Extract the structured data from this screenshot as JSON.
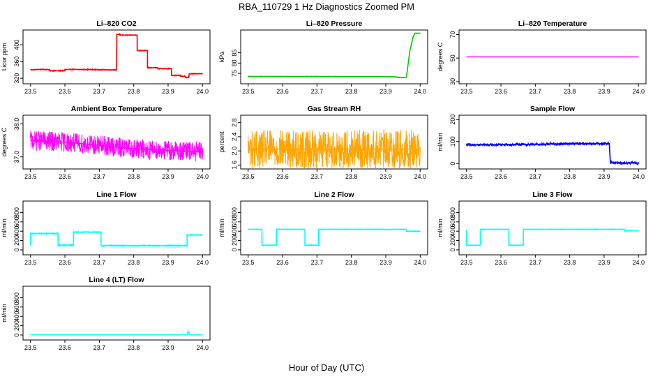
{
  "figure": {
    "title": "RBA_110729  1 Hz Diagnostics Zoomed PM",
    "xlabel": "Hour of Day (UTC)"
  },
  "chart_data": [
    {
      "id": "co2",
      "type": "line",
      "title": "Li–820 CO2",
      "ylabel": "Licor ppm",
      "color": "#ff0000",
      "noise": 1.2,
      "xlim": [
        23.5,
        24.0
      ],
      "ylim": [
        312,
        430
      ],
      "xticks": [
        23.5,
        23.6,
        23.7,
        23.8,
        23.9,
        24.0
      ],
      "xtick_labels": [
        "23.5",
        "23.6",
        "23.7",
        "23.8",
        "23.9",
        "24.0"
      ],
      "yticks": [
        320,
        360,
        400
      ],
      "ytick_labels": [
        "320",
        "360",
        "400"
      ],
      "series": [
        {
          "name": "CO2",
          "x": [
            23.5,
            23.52,
            23.555,
            23.555,
            23.6,
            23.6,
            23.65,
            23.73,
            23.75,
            23.751,
            23.76,
            23.76,
            23.81,
            23.81,
            23.84,
            23.84,
            23.87,
            23.87,
            23.91,
            23.91,
            23.935,
            23.935,
            23.94,
            23.95,
            23.951,
            23.96,
            23.961,
            23.97,
            24.0
          ],
          "y": [
            340,
            341,
            341,
            338,
            338,
            341,
            341,
            340,
            340,
            425,
            425,
            423,
            423,
            386,
            386,
            345,
            345,
            343,
            343,
            327,
            327,
            325,
            325,
            325,
            322,
            322,
            330,
            331,
            331
          ]
        }
      ]
    },
    {
      "id": "pressure",
      "type": "line",
      "title": "Li–820 Pressure",
      "ylabel": "kPa",
      "color": "#00cc00",
      "noise": 0.15,
      "xlim": [
        23.5,
        24.0
      ],
      "ylim": [
        71,
        95
      ],
      "xticks": [
        23.5,
        23.6,
        23.7,
        23.8,
        23.9,
        24.0
      ],
      "xtick_labels": [
        "23.5",
        "23.6",
        "23.7",
        "23.8",
        "23.9",
        "24.0"
      ],
      "yticks": [
        75,
        80,
        85
      ],
      "ytick_labels": [
        "75",
        "80",
        "85"
      ],
      "series": [
        {
          "name": "Pressure",
          "x": [
            23.5,
            23.6,
            23.7,
            23.8,
            23.9,
            23.93,
            23.935,
            23.955,
            23.96,
            23.97,
            23.98,
            23.985,
            23.99,
            24.0
          ],
          "y": [
            73.5,
            73.5,
            73.5,
            73.4,
            73.4,
            73.3,
            73.0,
            73.0,
            73.2,
            86.0,
            93.0,
            94.5,
            94.5,
            94.5
          ]
        }
      ]
    },
    {
      "id": "temperature",
      "type": "line",
      "title": "Li–820 Temperature",
      "ylabel": "degrees C",
      "color": "#ff00ff",
      "noise": 0,
      "xlim": [
        23.5,
        24.0
      ],
      "ylim": [
        30,
        72
      ],
      "xticks": [
        23.5,
        23.6,
        23.7,
        23.8,
        23.9,
        24.0
      ],
      "xtick_labels": [
        "23.5",
        "23.6",
        "23.7",
        "23.8",
        "23.9",
        "24.0"
      ],
      "yticks": [
        30,
        50,
        70
      ],
      "ytick_labels": [
        "30",
        "50",
        "70"
      ],
      "series": [
        {
          "name": "Temperature",
          "x": [
            23.5,
            24.0
          ],
          "y": [
            51,
            51
          ]
        }
      ]
    },
    {
      "id": "ambient",
      "type": "line",
      "title": "Ambient Box Temperature",
      "ylabel": "degrees C",
      "color": "#ff00ff",
      "noise": 0.3,
      "xlim": [
        23.5,
        24.0
      ],
      "ylim": [
        36.7,
        38.2
      ],
      "xticks": [
        23.5,
        23.6,
        23.7,
        23.8,
        23.9,
        24.0
      ],
      "xtick_labels": [
        "23.5",
        "23.6",
        "23.7",
        "23.8",
        "23.9",
        "24.0"
      ],
      "yticks": [
        37.0,
        38.0
      ],
      "ytick_labels": [
        "37.0",
        "38.0"
      ],
      "series": [
        {
          "name": "Ambient",
          "x": [
            23.5,
            23.6,
            23.7,
            23.8,
            23.9,
            24.0
          ],
          "y": [
            37.5,
            37.45,
            37.35,
            37.25,
            37.2,
            37.15
          ]
        }
      ]
    },
    {
      "id": "rh",
      "type": "line",
      "title": "Gas Stream RH",
      "ylabel": "percent",
      "color": "#ffa500",
      "noise": 0.55,
      "xlim": [
        23.5,
        24.0
      ],
      "ylim": [
        1.55,
        2.95
      ],
      "xticks": [
        23.5,
        23.6,
        23.7,
        23.8,
        23.9,
        24.0
      ],
      "xtick_labels": [
        "23.5",
        "23.6",
        "23.7",
        "23.8",
        "23.9",
        "24.0"
      ],
      "yticks": [
        1.6,
        2.0,
        2.4,
        2.8
      ],
      "ytick_labels": [
        "1.6",
        "2.0",
        "2.4",
        "2.8"
      ],
      "series": [
        {
          "name": "RH",
          "x": [
            23.5,
            24.0
          ],
          "y": [
            2.05,
            2.05
          ]
        }
      ]
    },
    {
      "id": "sample_flow",
      "type": "line",
      "title": "Sample Flow",
      "ylabel": "ml/min",
      "color": "#0000ff",
      "noise": 7,
      "xlim": [
        23.5,
        24.0
      ],
      "ylim": [
        -15,
        210
      ],
      "xticks": [
        23.5,
        23.6,
        23.7,
        23.8,
        23.9,
        24.0
      ],
      "xtick_labels": [
        "23.5",
        "23.6",
        "23.7",
        "23.8",
        "23.9",
        "24.0"
      ],
      "yticks": [
        0,
        100,
        200
      ],
      "ytick_labels": [
        "0",
        "100",
        "200"
      ],
      "series": [
        {
          "name": "Sample Flow",
          "x": [
            23.5,
            23.6,
            23.7,
            23.75,
            23.8,
            23.9,
            23.915,
            23.918,
            23.93,
            24.0
          ],
          "y": [
            85,
            86,
            87,
            89,
            90,
            90,
            90,
            5,
            3,
            2
          ]
        }
      ]
    },
    {
      "id": "line1",
      "type": "line",
      "title": "Line 1 Flow",
      "ylabel": "ml/min",
      "color": "#00ffff",
      "noise": 15,
      "xlim": [
        23.5,
        24.0
      ],
      "ylim": [
        -60,
        1000
      ],
      "xticks": [
        23.5,
        23.6,
        23.7,
        23.8,
        23.9,
        24.0
      ],
      "xtick_labels": [
        "23.5",
        "23.6",
        "23.7",
        "23.8",
        "23.9",
        "24.0"
      ],
      "yticks": [
        0,
        200,
        400,
        600,
        800
      ],
      "ytick_labels": [
        "0",
        "200",
        "400",
        "600",
        "800"
      ],
      "series": [
        {
          "name": "Line 1",
          "x": [
            23.5,
            23.5,
            23.58,
            23.58,
            23.625,
            23.625,
            23.705,
            23.705,
            23.955,
            23.955,
            24.0
          ],
          "y": [
            100,
            350,
            350,
            100,
            100,
            380,
            380,
            90,
            90,
            320,
            320
          ]
        }
      ]
    },
    {
      "id": "line2",
      "type": "line",
      "title": "Line 2 Flow",
      "ylabel": "ml/min",
      "color": "#00ffff",
      "noise": 8,
      "xlim": [
        23.5,
        24.0
      ],
      "ylim": [
        -60,
        1000
      ],
      "xticks": [
        23.5,
        23.6,
        23.7,
        23.8,
        23.9,
        24.0
      ],
      "xtick_labels": [
        "23.5",
        "23.6",
        "23.7",
        "23.8",
        "23.9",
        "24.0"
      ],
      "yticks": [
        0,
        200,
        400,
        600,
        800
      ],
      "ytick_labels": [
        "0",
        "200",
        "400",
        "600",
        "800"
      ],
      "series": [
        {
          "name": "Line 2",
          "x": [
            23.5,
            23.54,
            23.54,
            23.582,
            23.582,
            23.665,
            23.665,
            23.705,
            23.705,
            23.96,
            23.96,
            24.0
          ],
          "y": [
            440,
            440,
            100,
            100,
            440,
            440,
            100,
            100,
            440,
            440,
            400,
            400
          ]
        }
      ]
    },
    {
      "id": "line3",
      "type": "line",
      "title": "Line 3 Flow",
      "ylabel": "ml/min",
      "color": "#00ffff",
      "noise": 8,
      "xlim": [
        23.5,
        24.0
      ],
      "ylim": [
        -60,
        1000
      ],
      "xticks": [
        23.5,
        23.6,
        23.7,
        23.8,
        23.9,
        24.0
      ],
      "xtick_labels": [
        "23.5",
        "23.6",
        "23.7",
        "23.8",
        "23.9",
        "24.0"
      ],
      "yticks": [
        0,
        200,
        400,
        600,
        800
      ],
      "ytick_labels": [
        "0",
        "200",
        "400",
        "600",
        "800"
      ],
      "series": [
        {
          "name": "Line 3",
          "x": [
            23.5,
            23.5,
            23.5,
            23.54,
            23.54,
            23.623,
            23.623,
            23.665,
            23.665,
            23.96,
            23.96,
            24.0
          ],
          "y": [
            420,
            100,
            100,
            100,
            440,
            440,
            100,
            100,
            440,
            440,
            410,
            410
          ]
        }
      ]
    },
    {
      "id": "line4",
      "type": "line",
      "title": "Line 4 (LT) Flow",
      "ylabel": "ml/min",
      "color": "#00ffff",
      "noise": 3,
      "xlim": [
        23.5,
        24.0
      ],
      "ylim": [
        -60,
        1000
      ],
      "xticks": [
        23.5,
        23.6,
        23.7,
        23.8,
        23.9,
        24.0
      ],
      "xtick_labels": [
        "23.5",
        "23.6",
        "23.7",
        "23.8",
        "23.9",
        "24.0"
      ],
      "yticks": [
        0,
        200,
        400,
        600,
        800
      ],
      "ytick_labels": [
        "0",
        "200",
        "400",
        "600",
        "800"
      ],
      "series": [
        {
          "name": "Line 4 (LT)",
          "x": [
            23.5,
            23.955,
            23.958,
            23.962,
            23.965,
            24.0
          ],
          "y": [
            5,
            5,
            80,
            5,
            5,
            5
          ]
        }
      ]
    }
  ]
}
